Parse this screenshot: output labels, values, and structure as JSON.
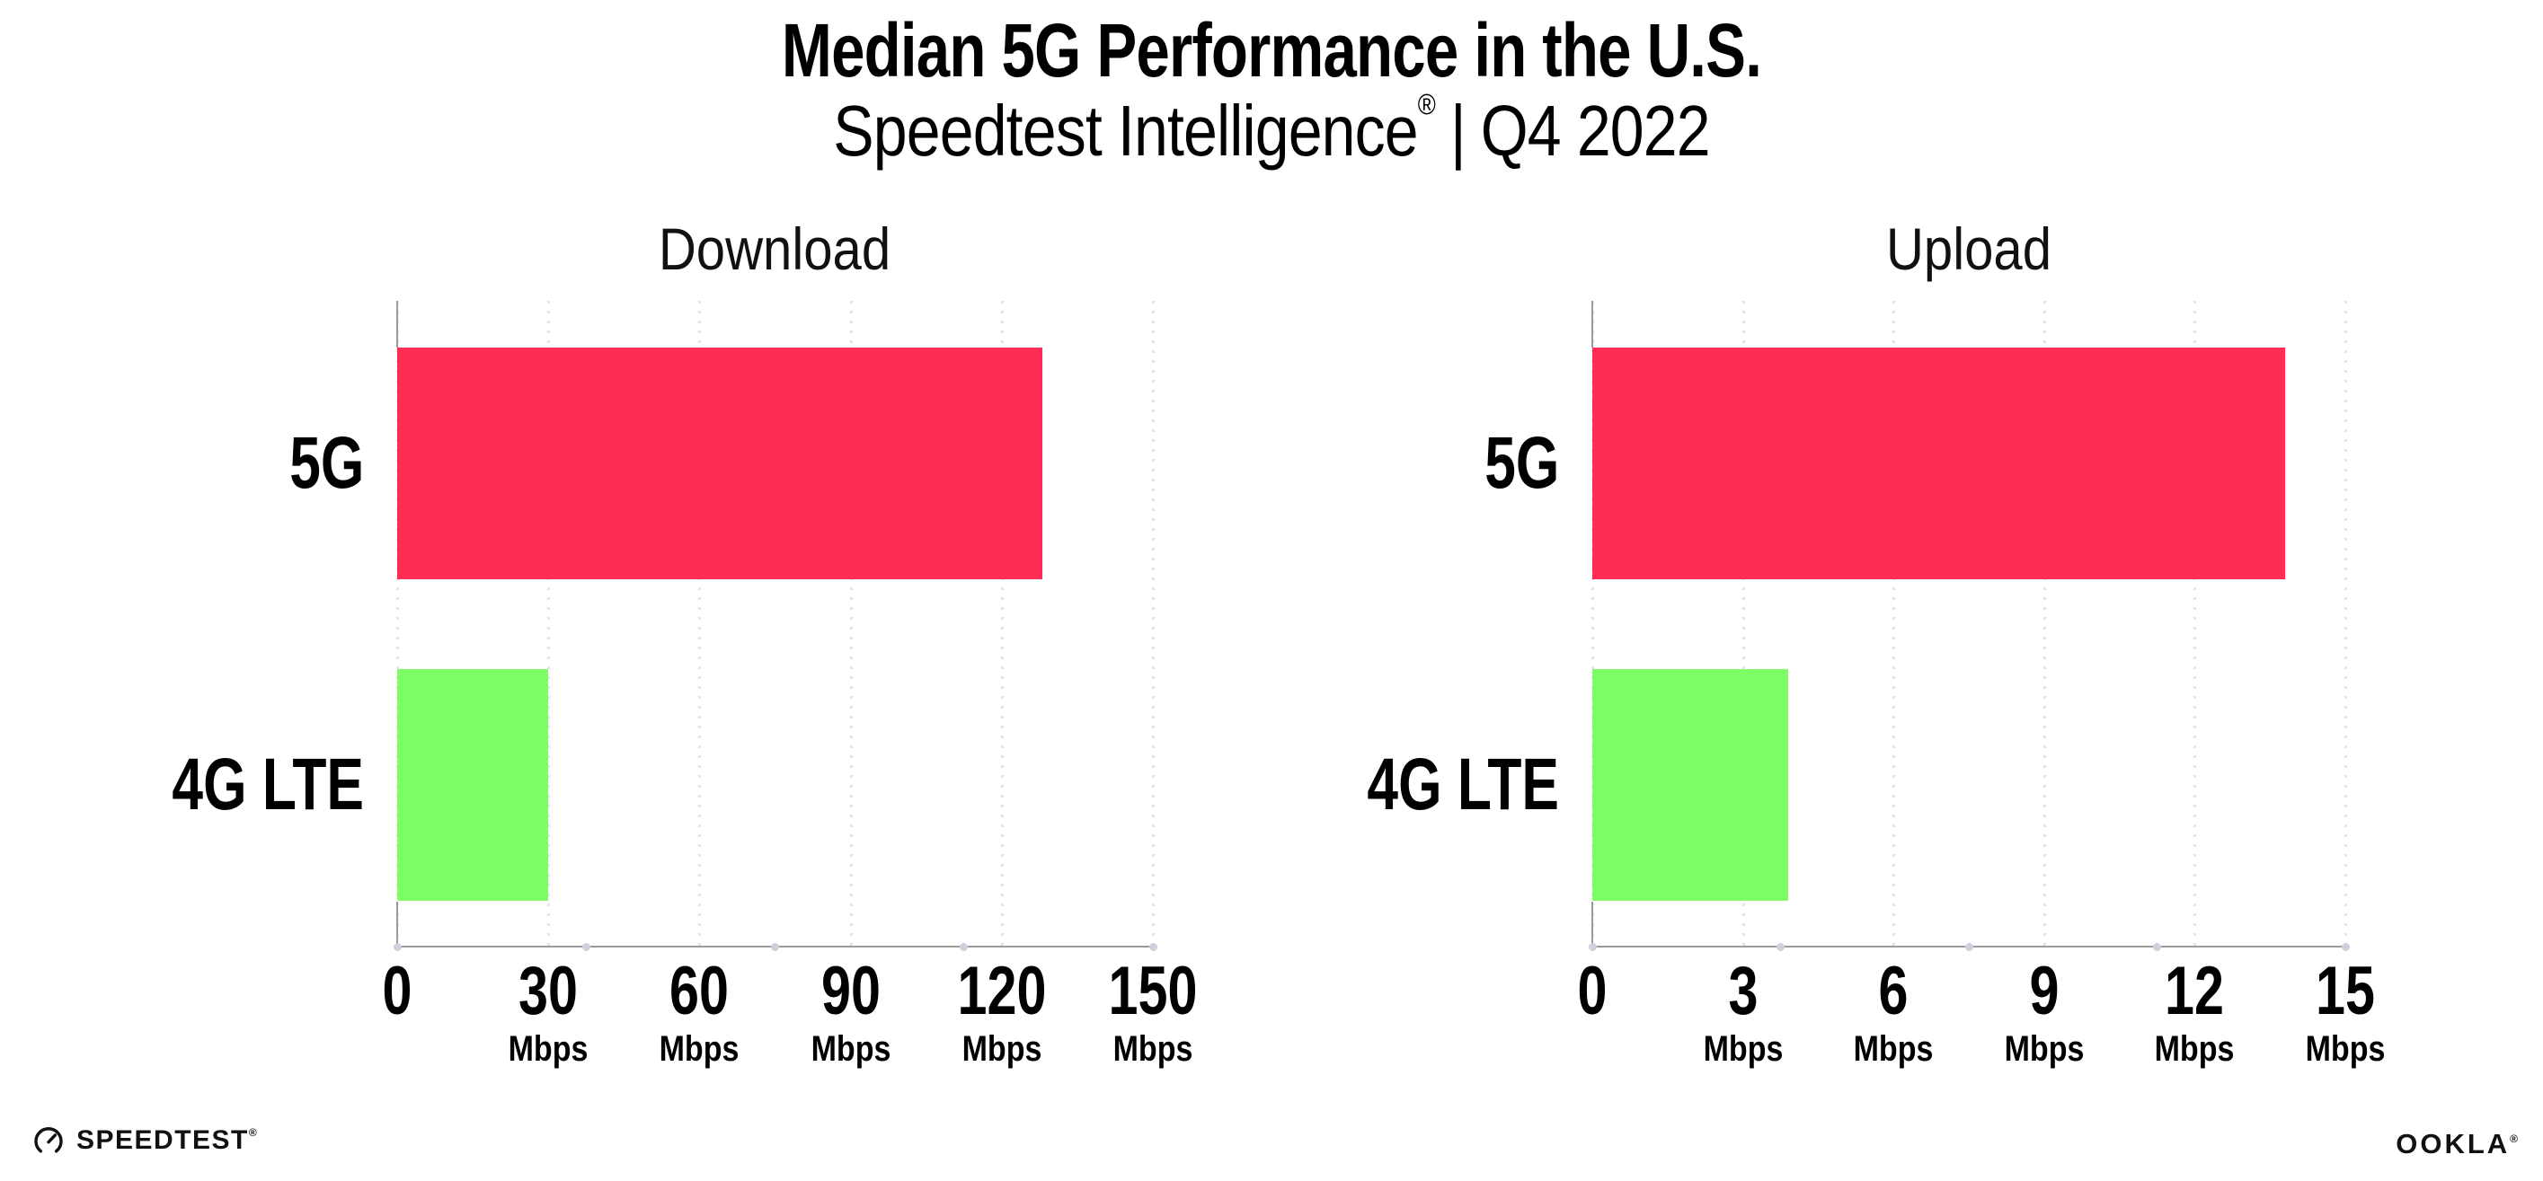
{
  "header": {
    "title": "Median 5G Performance in the U.S.",
    "subtitle_brand": "Speedtest Intelligence",
    "subtitle_reg": "®",
    "subtitle_divider": "|",
    "subtitle_period": "Q4 2022"
  },
  "chart_data": [
    {
      "type": "bar",
      "orientation": "horizontal",
      "title": "Download",
      "categories": [
        "5G",
        "4G LTE"
      ],
      "values": [
        128,
        30
      ],
      "unit": "Mbps",
      "xlim": [
        0,
        150
      ],
      "xticks": [
        0,
        30,
        60,
        90,
        120,
        150
      ],
      "bar_colors": [
        "#FF2D55",
        "#7EFD66"
      ],
      "grid": "dotted-vertical"
    },
    {
      "type": "bar",
      "orientation": "horizontal",
      "title": "Upload",
      "categories": [
        "5G",
        "4G LTE"
      ],
      "values": [
        13.8,
        3.9
      ],
      "unit": "Mbps",
      "xlim": [
        0,
        15
      ],
      "xticks": [
        0,
        3,
        6,
        9,
        12,
        15
      ],
      "bar_colors": [
        "#FF2D55",
        "#7EFD66"
      ],
      "grid": "dotted-vertical"
    }
  ],
  "footer": {
    "speedtest_label": "SPEEDTEST",
    "speedtest_mark": "®",
    "ookla_label": "OOKLA",
    "ookla_mark": "®"
  },
  "colors": {
    "bar_5g": "#FF2D55",
    "bar_4g_lte": "#7EFD66",
    "grid_dot": "#E3E3EF",
    "axis_line": "#9B9B9B",
    "axis_dot": "#CFD0DD",
    "text": "#000000"
  }
}
